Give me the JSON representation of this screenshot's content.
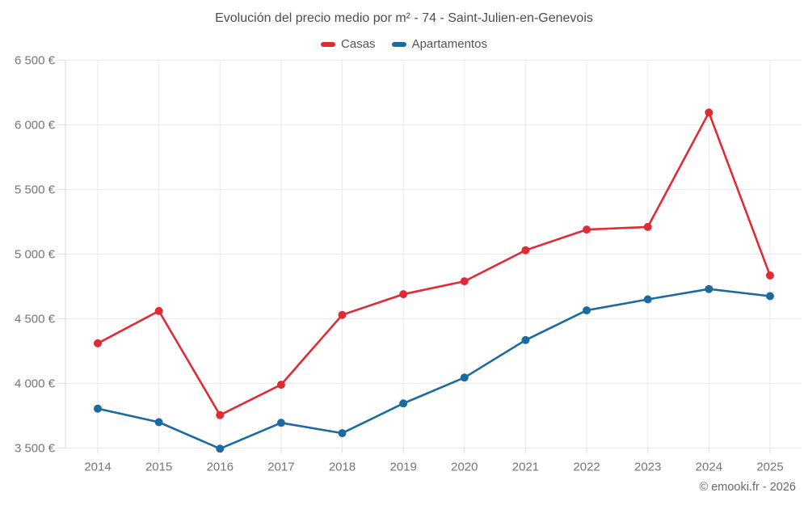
{
  "header": {
    "title": "Evolución del precio medio por m² - 74 - Saint-Julien-en-Genevois",
    "legend": [
      {
        "label": "Casas",
        "color": "#e02b35"
      },
      {
        "label": "Apartamentos",
        "color": "#1c6ba0"
      }
    ]
  },
  "footer": {
    "credit": "© emooki.fr - 2026"
  },
  "chart_data": {
    "type": "line",
    "title": "Evolución del precio medio por m² - 74 - Saint-Julien-en-Genevois",
    "categories": [
      "2014",
      "2015",
      "2016",
      "2017",
      "2018",
      "2019",
      "2020",
      "2021",
      "2022",
      "2023",
      "2024",
      "2025"
    ],
    "series": [
      {
        "name": "Casas",
        "color": "#e02b35",
        "values": [
          4310,
          4560,
          3755,
          3990,
          4530,
          4690,
          4790,
          5030,
          5190,
          5210,
          6095,
          4835
        ]
      },
      {
        "name": "Apartamentos",
        "color": "#1c6ba0",
        "values": [
          3805,
          3700,
          3495,
          3695,
          3615,
          3845,
          4045,
          4335,
          4565,
          4650,
          4730,
          4675
        ]
      }
    ],
    "xlabel": "",
    "ylabel": "",
    "ylim": [
      3500,
      6500
    ],
    "y_step": 500,
    "y_tick_labels": [
      "6 500 €",
      "6 000 €",
      "5 500 €",
      "5 000 €",
      "4 500 €",
      "4 000 €",
      "3 500 €"
    ],
    "currency": "€",
    "grid": true,
    "legend_position": "top",
    "colors": {
      "grid": "#e9e9e9",
      "axis": "#d8d8d8",
      "tick_text": "#757575"
    }
  }
}
